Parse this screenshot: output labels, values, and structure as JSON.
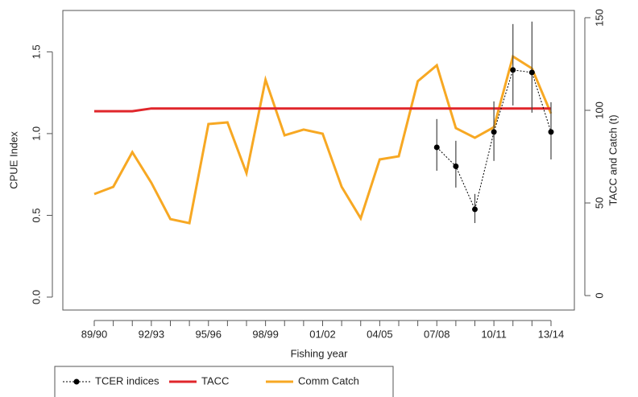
{
  "chart_data": {
    "type": "line",
    "x_label": "Fishing year",
    "y_label": "CPUE Index",
    "y2_label": "TACC and Catch (t)",
    "categories": [
      "89/90",
      null,
      null,
      "92/93",
      null,
      null,
      "95/96",
      null,
      null,
      "98/99",
      null,
      null,
      "01/02",
      null,
      null,
      "04/05",
      null,
      null,
      "07/08",
      null,
      null,
      "10/11",
      null,
      null,
      "13/14"
    ],
    "ylim": [
      -0.079,
      1.753
    ],
    "yticks": [
      {
        "value": 0,
        "label": "0.0"
      },
      {
        "value": 0.5,
        "label": "0.5"
      },
      {
        "value": 1,
        "label": "1.0"
      },
      {
        "value": 1.5,
        "label": "1.5"
      }
    ],
    "y2lim": [
      -7.8,
      153.9
    ],
    "y2ticks": [
      0,
      50,
      100,
      150
    ],
    "legend": "bottom",
    "series": [
      {
        "name": "TCER indices",
        "color": "#000000",
        "axis": "y",
        "values": [
          null,
          null,
          null,
          null,
          null,
          null,
          null,
          null,
          null,
          null,
          null,
          null,
          null,
          null,
          null,
          null,
          null,
          null,
          0.916,
          0.8,
          0.537,
          1.01,
          1.389,
          1.374,
          1.01
        ],
        "lower": [
          null,
          null,
          null,
          null,
          null,
          null,
          null,
          null,
          null,
          null,
          null,
          null,
          null,
          null,
          null,
          null,
          null,
          null,
          0.773,
          0.67,
          0.453,
          0.833,
          1.172,
          1.128,
          0.842
        ],
        "upper": [
          null,
          null,
          null,
          null,
          null,
          null,
          null,
          null,
          null,
          null,
          null,
          null,
          null,
          null,
          null,
          null,
          null,
          null,
          1.089,
          0.956,
          0.631,
          1.197,
          1.67,
          1.685,
          1.192
        ]
      },
      {
        "name": "TACC",
        "color": "#e0262b",
        "axis": "y2",
        "values": [
          99.5,
          99.5,
          99.5,
          101,
          101,
          101,
          101,
          101,
          101,
          101,
          101,
          101,
          101,
          101,
          101,
          101,
          101,
          101,
          101,
          101,
          101,
          101,
          101,
          101,
          101
        ]
      },
      {
        "name": "Comm Catch",
        "color": "#f7a823",
        "axis": "y2",
        "values": [
          54.8,
          58.7,
          77.4,
          60.9,
          41.3,
          39.1,
          92.6,
          93.5,
          66.1,
          116.5,
          86.5,
          89.6,
          87.4,
          58.7,
          41.7,
          73.5,
          75.2,
          115.7,
          124.3,
          90.4,
          85.2,
          90.9,
          129.1,
          122.6,
          98.3
        ]
      }
    ]
  }
}
